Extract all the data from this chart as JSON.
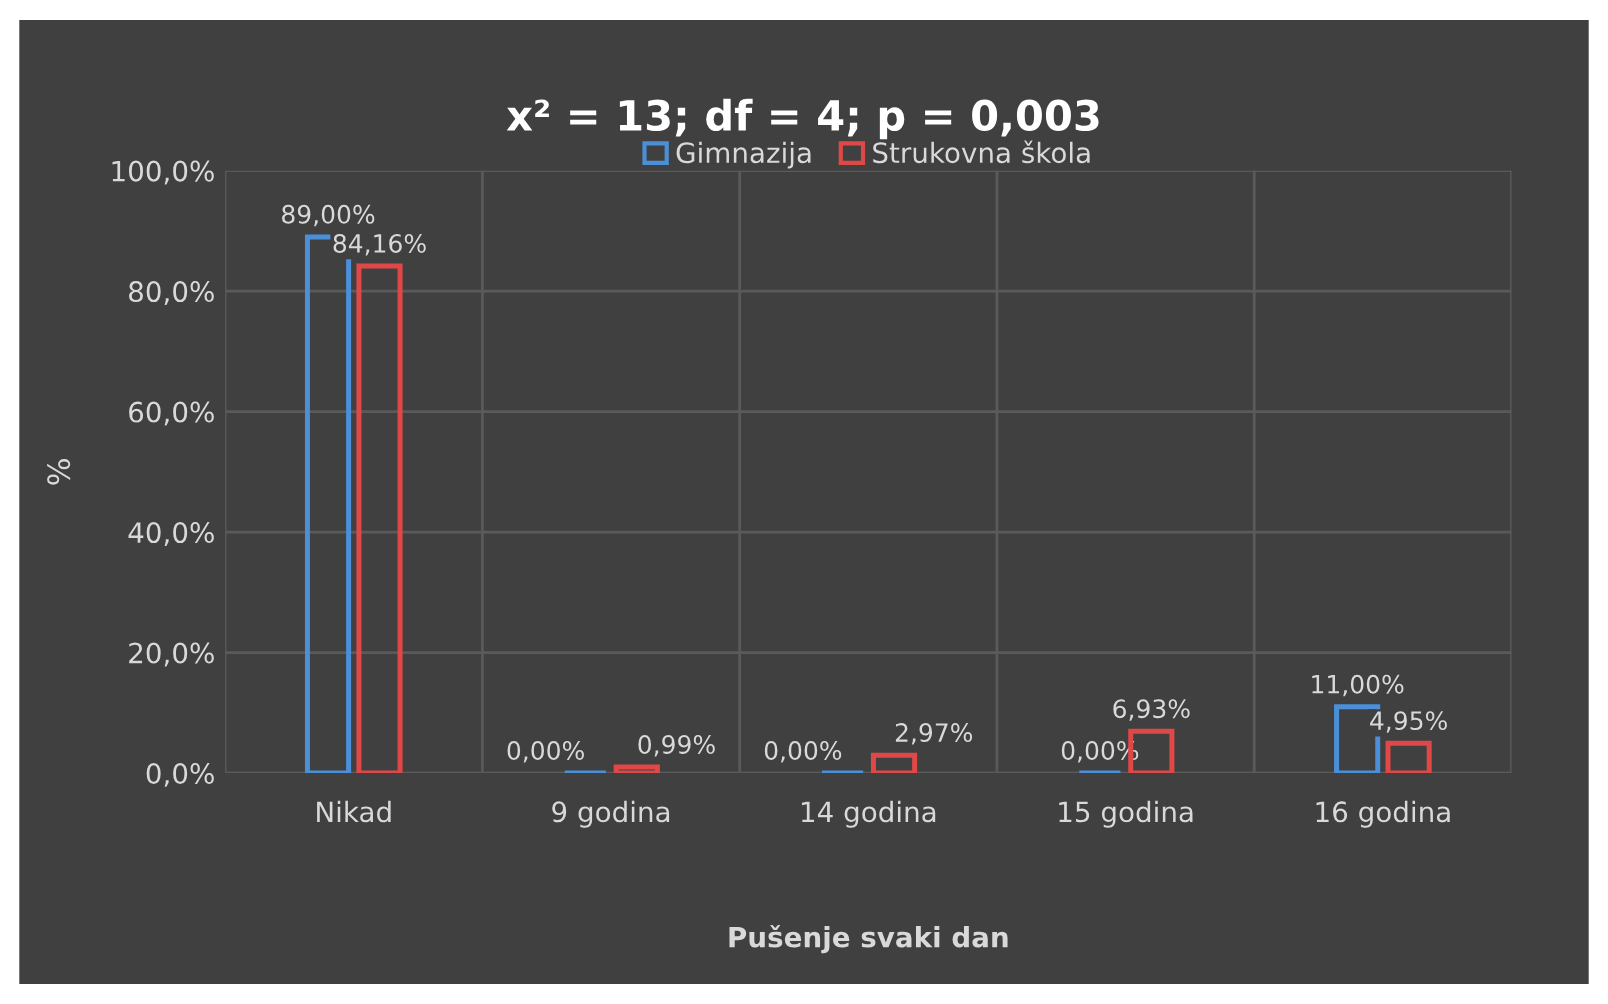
{
  "chart_data": {
    "type": "bar",
    "title": "x² = 13; df = 4; p = 0,003",
    "xlabel": "Pušenje svaki dan",
    "ylabel": "%",
    "categories": [
      "Nikad",
      "9 godina",
      "14 godina",
      "15 godina",
      "16 godina"
    ],
    "series": [
      {
        "name": "Gimnazija",
        "color": "#4a8fd8",
        "values": [
          89.0,
          0.0,
          0.0,
          0.0,
          11.0
        ],
        "value_labels": [
          "89,00%",
          "0,00%",
          "0,00%",
          "0,00%",
          "11,00%"
        ]
      },
      {
        "name": "Strukovna škola",
        "color": "#e04848",
        "values": [
          84.16,
          0.99,
          2.97,
          6.93,
          4.95
        ],
        "value_labels": [
          "84,16%",
          "0,99%",
          "2,97%",
          "6,93%",
          "4,95%"
        ]
      }
    ],
    "ylim": [
      0,
      100
    ],
    "yticks": [
      {
        "value": 0,
        "label": "0,0%"
      },
      {
        "value": 20,
        "label": "20,0%"
      },
      {
        "value": 40,
        "label": "40,0%"
      },
      {
        "value": 60,
        "label": "60,0%"
      },
      {
        "value": 80,
        "label": "80,0%"
      },
      {
        "value": 100,
        "label": "100,0%"
      }
    ],
    "grid": true,
    "legend": "top"
  }
}
